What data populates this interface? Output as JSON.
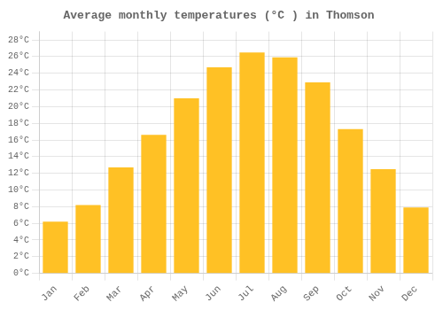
{
  "chart_data": {
    "type": "bar",
    "title": "Average monthly temperatures (°C ) in Thomson",
    "categories": [
      "Jan",
      "Feb",
      "Mar",
      "Apr",
      "May",
      "Jun",
      "Jul",
      "Aug",
      "Sep",
      "Oct",
      "Nov",
      "Dec"
    ],
    "values": [
      6.2,
      8.2,
      12.7,
      16.6,
      21.0,
      24.7,
      26.5,
      25.9,
      22.9,
      17.3,
      12.5,
      7.9
    ],
    "color": "#FFC125",
    "ylim": [
      0,
      29
    ],
    "yticks": [
      {
        "value": 0,
        "label": "0°C"
      },
      {
        "value": 2,
        "label": "2°C"
      },
      {
        "value": 4,
        "label": "4°C"
      },
      {
        "value": 6,
        "label": "6°C"
      },
      {
        "value": 8,
        "label": "8°C"
      },
      {
        "value": 10,
        "label": "10°C"
      },
      {
        "value": 12,
        "label": "12°C"
      },
      {
        "value": 14,
        "label": "14°C"
      },
      {
        "value": 16,
        "label": "16°C"
      },
      {
        "value": 18,
        "label": "18°C"
      },
      {
        "value": 20,
        "label": "20°C"
      },
      {
        "value": 22,
        "label": "22°C"
      },
      {
        "value": 24,
        "label": "24°C"
      },
      {
        "value": 26,
        "label": "26°C"
      },
      {
        "value": 28,
        "label": "28°C"
      }
    ],
    "grid": true
  }
}
